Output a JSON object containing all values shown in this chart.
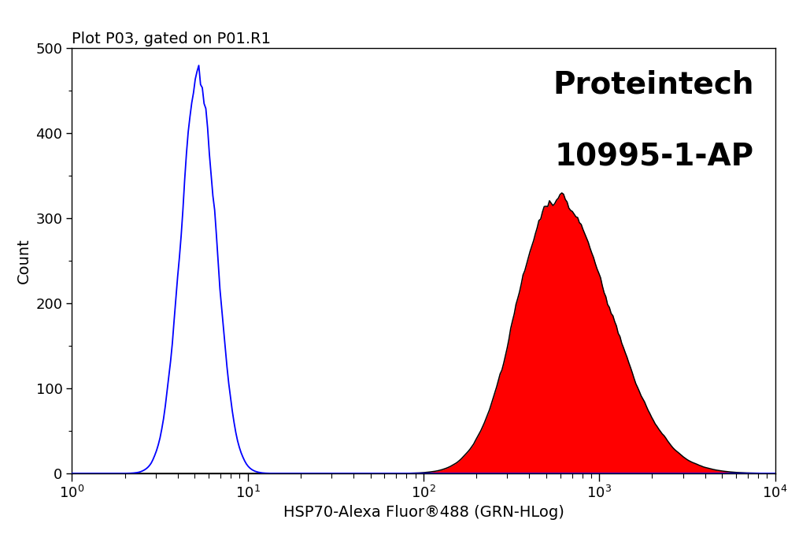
{
  "title": "Plot P03, gated on P01.R1",
  "xlabel": "HSP70-Alexa Fluor®488 (GRN-HLog)",
  "ylabel": "Count",
  "xlim": [
    1,
    10000
  ],
  "ylim": [
    0,
    500
  ],
  "yticks": [
    0,
    100,
    200,
    300,
    400,
    500
  ],
  "xtick_majors": [
    1,
    10,
    100,
    1000,
    10000
  ],
  "watermark_line1": "Proteintech",
  "watermark_line2": "10995-1-AP",
  "blue_color": "#0000FF",
  "red_color": "#FF0000",
  "black_color": "#000000",
  "bg_color": "#FFFFFF",
  "title_fontsize": 14,
  "label_fontsize": 14,
  "tick_fontsize": 13,
  "watermark_fontsize": 28,
  "blue_peak_log": 0.72,
  "blue_sigma_log": 0.1,
  "blue_peak_height": 480,
  "red_peak_log": 2.75,
  "red_sigma_log": 0.22,
  "red_peak_height": 330,
  "n_bins": 400,
  "seed": 42
}
